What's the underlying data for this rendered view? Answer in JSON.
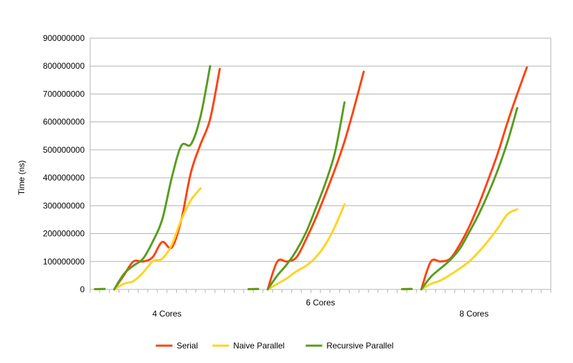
{
  "chart_data": {
    "type": "line",
    "ylabel": "Time (ns)",
    "ylim": [
      0,
      900000000
    ],
    "yticks": [
      "0",
      "100000000",
      "200000000",
      "300000000",
      "400000000",
      "500000000",
      "600000000",
      "700000000",
      "800000000",
      "900000000"
    ],
    "grid": true,
    "legend_position": "bottom",
    "groups": [
      "4 Cores",
      "6 Cores",
      "8 Cores"
    ],
    "points_per_group": 15,
    "series": [
      {
        "name": "Serial",
        "color": "#ff420e",
        "groups": [
          [
            1200000,
            1800000,
            0,
            50000000,
            100000000,
            100000000,
            115000000,
            170000000,
            150000000,
            250000000,
            420000000,
            520000000,
            610000000,
            790000000,
            null
          ],
          [
            1200000,
            1800000,
            0,
            100000000,
            100000000,
            115000000,
            180000000,
            255000000,
            340000000,
            430000000,
            530000000,
            650000000,
            780000000,
            null,
            null
          ],
          [
            1200000,
            1800000,
            0,
            100000000,
            100000000,
            110000000,
            160000000,
            225000000,
            305000000,
            395000000,
            490000000,
            600000000,
            700000000,
            795000000,
            null
          ]
        ]
      },
      {
        "name": "Naive Parallel",
        "color": "#ffd320",
        "groups": [
          [
            800000,
            1200000,
            0,
            20000000,
            30000000,
            60000000,
            100000000,
            110000000,
            160000000,
            250000000,
            320000000,
            362000000,
            null,
            null,
            null
          ],
          [
            800000,
            1200000,
            0,
            20000000,
            40000000,
            65000000,
            85000000,
            115000000,
            160000000,
            225000000,
            305000000,
            null,
            null,
            null,
            null
          ],
          [
            800000,
            1200000,
            0,
            20000000,
            32000000,
            52000000,
            75000000,
            100000000,
            135000000,
            175000000,
            220000000,
            270000000,
            287000000,
            null,
            null
          ]
        ]
      },
      {
        "name": "Recursive Parallel",
        "color": "#579d1c",
        "groups": [
          [
            1000000,
            1500000,
            0,
            55000000,
            85000000,
            110000000,
            170000000,
            250000000,
            400000000,
            515000000,
            520000000,
            620000000,
            800000000,
            null,
            null
          ],
          [
            1000000,
            1500000,
            0,
            50000000,
            90000000,
            140000000,
            205000000,
            290000000,
            380000000,
            490000000,
            670000000,
            null,
            null,
            null,
            null
          ],
          [
            1000000,
            1500000,
            0,
            45000000,
            75000000,
            105000000,
            145000000,
            205000000,
            270000000,
            345000000,
            430000000,
            530000000,
            650000000,
            null,
            null
          ]
        ]
      }
    ]
  }
}
